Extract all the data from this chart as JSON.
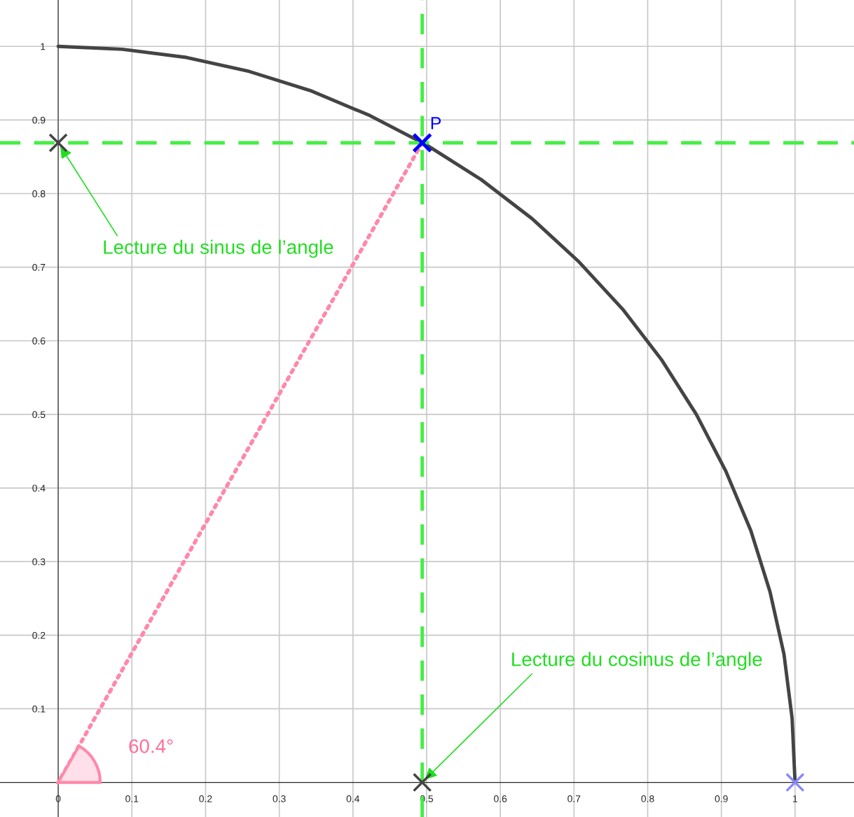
{
  "chart_data": {
    "type": "line",
    "xlim": [
      -0.079,
      1.08
    ],
    "ylim": [
      -0.047,
      1.063
    ],
    "xticks": [
      0,
      0.1,
      0.2,
      0.3,
      0.4,
      0.5,
      0.6,
      0.7,
      0.8,
      0.9,
      1
    ],
    "yticks": [
      0.1,
      0.2,
      0.3,
      0.4,
      0.5,
      0.6,
      0.7,
      0.8,
      0.9,
      1
    ],
    "grid": true,
    "series": [
      {
        "color": "#444444",
        "line_style": "solid",
        "x": [
          0,
          0.087,
          0.174,
          0.259,
          0.342,
          0.423,
          0.5,
          0.574,
          0.643,
          0.707,
          0.766,
          0.819,
          0.866,
          0.906,
          0.94,
          0.966,
          0.985,
          0.996,
          1
        ],
        "values": [
          1,
          0.996,
          0.985,
          0.966,
          0.94,
          0.906,
          0.866,
          0.819,
          0.766,
          0.707,
          0.643,
          0.574,
          0.5,
          0.423,
          0.342,
          0.259,
          0.174,
          0.087,
          0
        ]
      },
      {
        "color": "#ff88aa",
        "line_style": "dotted",
        "x": [
          0.494,
          0
        ],
        "values": [
          0.869,
          0
        ]
      },
      {
        "type": "scatter",
        "color": "#444444",
        "marker": "cross",
        "x": [
          0
        ],
        "values": [
          0.869
        ]
      },
      {
        "type": "scatter",
        "color": "#444444",
        "marker": "cross",
        "x": [
          0.494
        ],
        "values": [
          0
        ]
      },
      {
        "type": "scatter",
        "color": "#8888ff",
        "marker": "cross",
        "x": [
          1
        ],
        "values": [
          0
        ]
      },
      {
        "type": "scatter",
        "name": "P",
        "color": "#0000ff",
        "marker": "cross",
        "x": [
          0.494
        ],
        "values": [
          0.869
        ]
      }
    ],
    "ref_lines": [
      {
        "axis": "x",
        "value": 0.494,
        "color": "#44ee44",
        "line_style": "dashed"
      },
      {
        "axis": "y",
        "value": 0.869,
        "color": "#44ee44",
        "line_style": "dashed"
      }
    ],
    "annotations": [
      {
        "text": "Lecture du sinus de l’angle",
        "x": 0,
        "y": 0.869
      },
      {
        "text": "Lecture du cosinus de l’angle",
        "x": 0.494,
        "y": 0
      },
      "60.4°"
    ]
  }
}
